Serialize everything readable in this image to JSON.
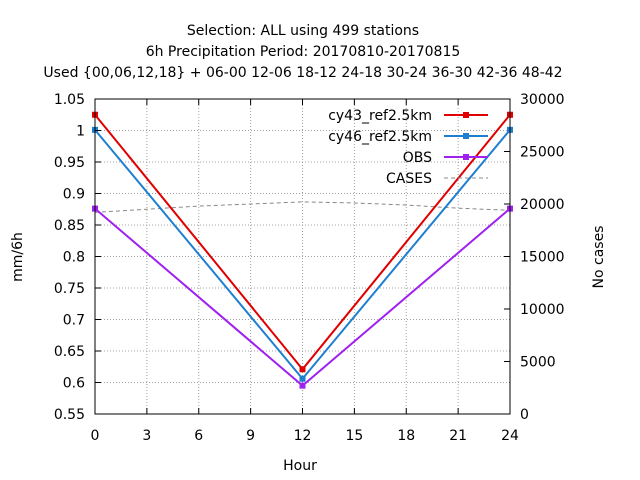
{
  "chart_data": {
    "type": "line",
    "title_lines": [
      "Selection: ALL using   499 stations",
      "6h Precipitation    Period: 20170810-20170815",
      "Used {00,06,12,18} + 06-00 12-06 18-12 24-18 30-24 36-30 42-36 48-42"
    ],
    "xlabel": "Hour",
    "ylabel": "mm/6h",
    "y2label": "No cases",
    "xlim": [
      0,
      24
    ],
    "ylim": [
      0.55,
      1.05
    ],
    "y2lim": [
      0,
      30000
    ],
    "xticks": [
      "0",
      "3",
      "6",
      "9",
      "12",
      "15",
      "18",
      "21",
      "24"
    ],
    "yticks": [
      "0.55",
      "0.6",
      "0.65",
      "0.7",
      "0.75",
      "0.8",
      "0.85",
      "0.9",
      "0.95",
      "1",
      "1.05"
    ],
    "y2ticks": [
      "0",
      "5000",
      "10000",
      "15000",
      "20000",
      "25000",
      "30000"
    ],
    "grid": true,
    "legend_position": "top-right",
    "series": [
      {
        "name": "cy43_ref2.5km",
        "color": "#e00000",
        "axis": "y",
        "style": "solid",
        "marker": true,
        "x": [
          0,
          12,
          24
        ],
        "y": [
          1.025,
          0.621,
          1.025
        ]
      },
      {
        "name": "cy46_ref2.5km",
        "color": "#1e7fd0",
        "axis": "y",
        "style": "solid",
        "marker": true,
        "x": [
          0,
          12,
          24
        ],
        "y": [
          1.001,
          0.606,
          1.001
        ]
      },
      {
        "name": "OBS",
        "color": "#a020f0",
        "axis": "y",
        "style": "solid",
        "marker": true,
        "x": [
          0,
          12,
          24
        ],
        "y": [
          0.876,
          0.595,
          0.876
        ]
      },
      {
        "name": "CASES",
        "color": "#888888",
        "axis": "y2",
        "style": "dashed",
        "marker": false,
        "x": [
          0,
          3,
          6,
          9,
          12,
          15,
          18,
          21,
          24
        ],
        "y": [
          19200,
          19500,
          19800,
          20000,
          20200,
          20100,
          19900,
          19600,
          19400
        ]
      }
    ]
  }
}
